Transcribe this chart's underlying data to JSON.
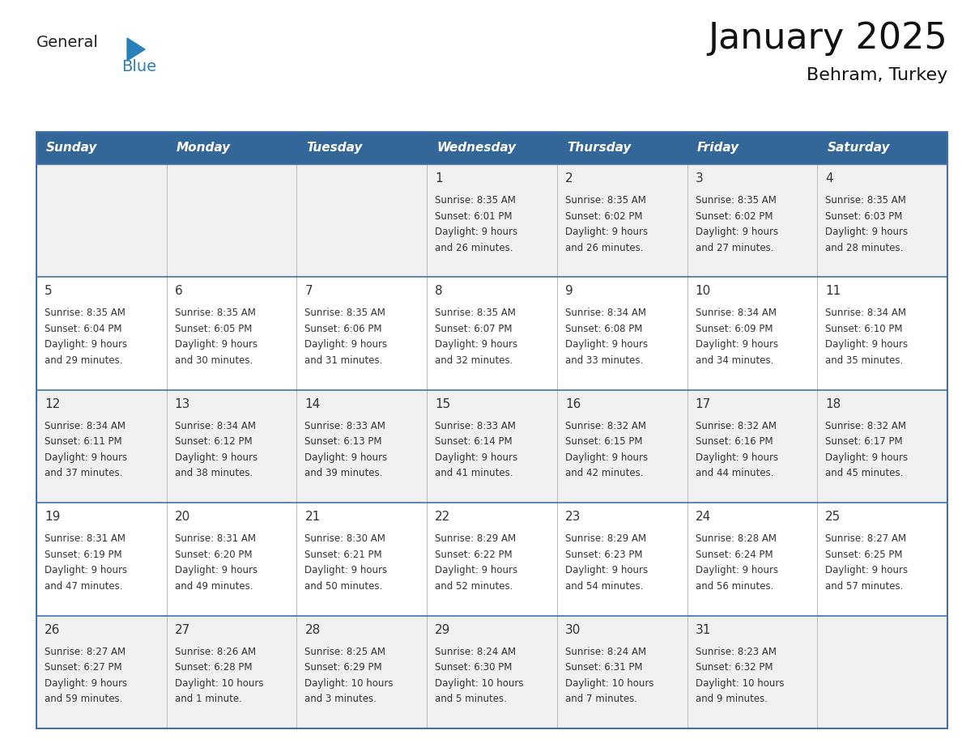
{
  "title": "January 2025",
  "subtitle": "Behram, Turkey",
  "days_of_week": [
    "Sunday",
    "Monday",
    "Tuesday",
    "Wednesday",
    "Thursday",
    "Friday",
    "Saturday"
  ],
  "header_bg": "#336699",
  "header_text": "#ffffff",
  "row_bg_even": "#f0f0f0",
  "row_bg_odd": "#ffffff",
  "border_color": "#4472a8",
  "text_color": "#333333",
  "calendar_data": [
    [
      "",
      "",
      "",
      "1|Sunrise: 8:35 AM|Sunset: 6:01 PM|Daylight: 9 hours|and 26 minutes.",
      "2|Sunrise: 8:35 AM|Sunset: 6:02 PM|Daylight: 9 hours|and 26 minutes.",
      "3|Sunrise: 8:35 AM|Sunset: 6:02 PM|Daylight: 9 hours|and 27 minutes.",
      "4|Sunrise: 8:35 AM|Sunset: 6:03 PM|Daylight: 9 hours|and 28 minutes."
    ],
    [
      "5|Sunrise: 8:35 AM|Sunset: 6:04 PM|Daylight: 9 hours|and 29 minutes.",
      "6|Sunrise: 8:35 AM|Sunset: 6:05 PM|Daylight: 9 hours|and 30 minutes.",
      "7|Sunrise: 8:35 AM|Sunset: 6:06 PM|Daylight: 9 hours|and 31 minutes.",
      "8|Sunrise: 8:35 AM|Sunset: 6:07 PM|Daylight: 9 hours|and 32 minutes.",
      "9|Sunrise: 8:34 AM|Sunset: 6:08 PM|Daylight: 9 hours|and 33 minutes.",
      "10|Sunrise: 8:34 AM|Sunset: 6:09 PM|Daylight: 9 hours|and 34 minutes.",
      "11|Sunrise: 8:34 AM|Sunset: 6:10 PM|Daylight: 9 hours|and 35 minutes."
    ],
    [
      "12|Sunrise: 8:34 AM|Sunset: 6:11 PM|Daylight: 9 hours|and 37 minutes.",
      "13|Sunrise: 8:34 AM|Sunset: 6:12 PM|Daylight: 9 hours|and 38 minutes.",
      "14|Sunrise: 8:33 AM|Sunset: 6:13 PM|Daylight: 9 hours|and 39 minutes.",
      "15|Sunrise: 8:33 AM|Sunset: 6:14 PM|Daylight: 9 hours|and 41 minutes.",
      "16|Sunrise: 8:32 AM|Sunset: 6:15 PM|Daylight: 9 hours|and 42 minutes.",
      "17|Sunrise: 8:32 AM|Sunset: 6:16 PM|Daylight: 9 hours|and 44 minutes.",
      "18|Sunrise: 8:32 AM|Sunset: 6:17 PM|Daylight: 9 hours|and 45 minutes."
    ],
    [
      "19|Sunrise: 8:31 AM|Sunset: 6:19 PM|Daylight: 9 hours|and 47 minutes.",
      "20|Sunrise: 8:31 AM|Sunset: 6:20 PM|Daylight: 9 hours|and 49 minutes.",
      "21|Sunrise: 8:30 AM|Sunset: 6:21 PM|Daylight: 9 hours|and 50 minutes.",
      "22|Sunrise: 8:29 AM|Sunset: 6:22 PM|Daylight: 9 hours|and 52 minutes.",
      "23|Sunrise: 8:29 AM|Sunset: 6:23 PM|Daylight: 9 hours|and 54 minutes.",
      "24|Sunrise: 8:28 AM|Sunset: 6:24 PM|Daylight: 9 hours|and 56 minutes.",
      "25|Sunrise: 8:27 AM|Sunset: 6:25 PM|Daylight: 9 hours|and 57 minutes."
    ],
    [
      "26|Sunrise: 8:27 AM|Sunset: 6:27 PM|Daylight: 9 hours|and 59 minutes.",
      "27|Sunrise: 8:26 AM|Sunset: 6:28 PM|Daylight: 10 hours|and 1 minute.",
      "28|Sunrise: 8:25 AM|Sunset: 6:29 PM|Daylight: 10 hours|and 3 minutes.",
      "29|Sunrise: 8:24 AM|Sunset: 6:30 PM|Daylight: 10 hours|and 5 minutes.",
      "30|Sunrise: 8:24 AM|Sunset: 6:31 PM|Daylight: 10 hours|and 7 minutes.",
      "31|Sunrise: 8:23 AM|Sunset: 6:32 PM|Daylight: 10 hours|and 9 minutes.",
      ""
    ]
  ],
  "logo_general_color": "#222222",
  "logo_blue_color": "#2980b9",
  "logo_triangle_color": "#2980b9",
  "title_fontsize": 32,
  "subtitle_fontsize": 16,
  "header_fontsize": 11,
  "day_num_fontsize": 11,
  "detail_fontsize": 8.5
}
